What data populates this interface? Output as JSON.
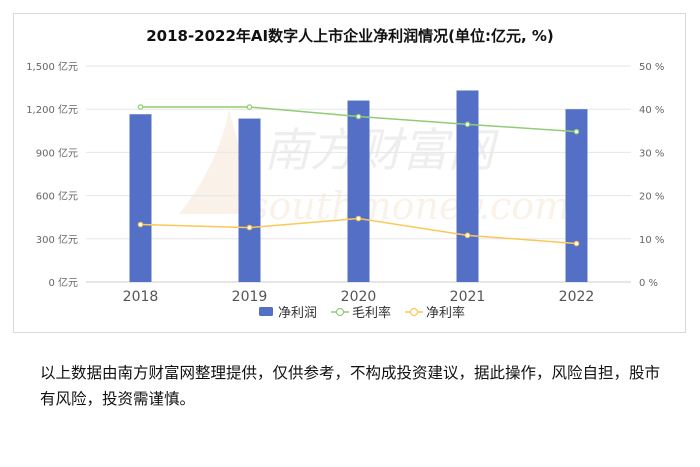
{
  "chart_data": {
    "type": "bar+line",
    "title": "2018-2022年AI数字人上市企业净利润情况(单位:亿元, %)",
    "categories": [
      "2018",
      "2019",
      "2020",
      "2021",
      "2022"
    ],
    "left_axis": {
      "ticks": [
        "0 亿元",
        "300 亿元",
        "600 亿元",
        "900 亿元",
        "1,200 亿元",
        "1,500 亿元"
      ],
      "ylim": [
        0,
        1500
      ]
    },
    "right_axis": {
      "ticks": [
        "0 %",
        "10 %",
        "20 %",
        "30 %",
        "40 %",
        "50 %"
      ],
      "ylim": [
        0,
        50
      ]
    },
    "series": [
      {
        "name": "净利润",
        "type": "bar",
        "axis": "left",
        "color": "#5470c6",
        "values": [
          1165,
          1135,
          1260,
          1330,
          1200
        ]
      },
      {
        "name": "毛利率",
        "type": "line",
        "axis": "right",
        "color": "#91cc75",
        "values": [
          40.5,
          40.5,
          38.3,
          36.5,
          34.8
        ]
      },
      {
        "name": "净利率",
        "type": "line",
        "axis": "right",
        "color": "#fac858",
        "values": [
          13.3,
          12.6,
          14.7,
          10.8,
          8.9
        ]
      }
    ],
    "legend_position": "bottom",
    "grid": true
  },
  "watermark": {
    "cn": "南方财富网",
    "en": "southmoney.com"
  },
  "footer": {
    "disclaimer": "以上数据由南方财富网整理提供，仅供参考，不构成投资建议，据此操作，风险自担，股市有风险，投资需谨慎。"
  }
}
